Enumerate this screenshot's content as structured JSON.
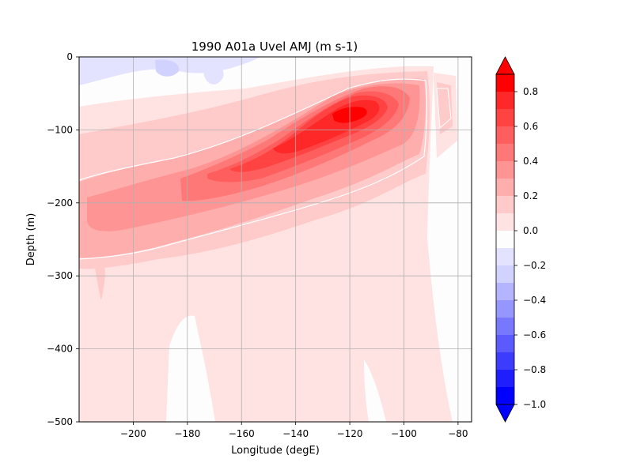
{
  "chart_data": {
    "type": "filled-contour",
    "title": "1990 A01a  Uvel AMJ (m s-1)",
    "xlabel": "Longitude (degE)",
    "ylabel": "Depth (m)",
    "xlim": [
      -220,
      -75
    ],
    "ylim": [
      -500,
      0
    ],
    "xticks": [
      -200,
      -180,
      -160,
      -140,
      -120,
      -100,
      -80
    ],
    "xtick_labels": [
      "−200",
      "−180",
      "−160",
      "−140",
      "−120",
      "−100",
      "−80"
    ],
    "yticks": [
      0,
      -100,
      -200,
      -300,
      -400,
      -500
    ],
    "ytick_labels": [
      "0",
      "−100",
      "−200",
      "−300",
      "−400",
      "−500"
    ],
    "grid": true,
    "colormap": "bwr",
    "levels": [
      -1.0,
      -0.9,
      -0.8,
      -0.7,
      -0.6,
      -0.5,
      -0.4,
      -0.3,
      -0.2,
      -0.1,
      0.0,
      0.1,
      0.2,
      0.3,
      0.4,
      0.5,
      0.6,
      0.7,
      0.8,
      0.9
    ],
    "colorbar": {
      "ticks": [
        -1.0,
        -0.8,
        -0.6,
        -0.4,
        -0.2,
        0.0,
        0.2,
        0.4,
        0.6,
        0.8
      ],
      "tick_labels": [
        "−1.0",
        "−0.8",
        "−0.6",
        "−0.4",
        "−0.2",
        "0.0",
        "0.2",
        "0.4",
        "0.6",
        "0.8"
      ],
      "extend": "both",
      "colors": [
        "#0000ff",
        "#1e1eff",
        "#3c3cff",
        "#5a5aff",
        "#7878ff",
        "#9696ff",
        "#b4b4ff",
        "#d2d2ff",
        "#e3e3ff",
        "#fdfdfd",
        "#ffe3e3",
        "#ffcaca",
        "#ffaeae",
        "#ff9494",
        "#ff7878",
        "#ff5e5e",
        "#ff4242",
        "#ff2828",
        "#ff0000"
      ]
    },
    "contour_line_level": 0.2,
    "jet_core": {
      "lon": -118,
      "depth": -75,
      "max_speed": 0.9
    }
  }
}
